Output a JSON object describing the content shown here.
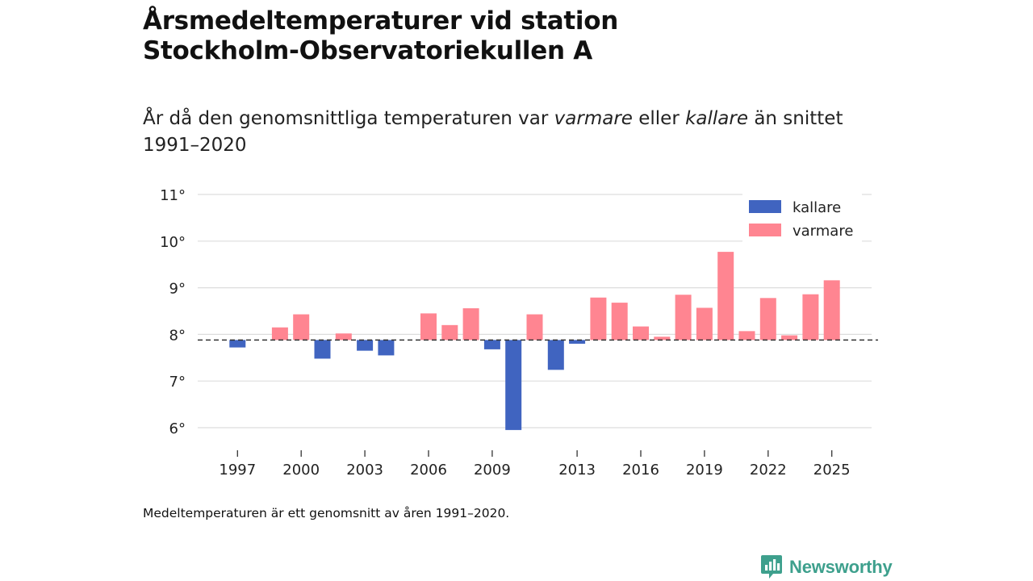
{
  "title_line1": "Årsmedeltemperaturer vid station",
  "title_line2": "Stockholm-Observatoriekullen A",
  "subtitle": {
    "part1": "År då den genomsnittliga temperaturen var ",
    "warm_word": "varmare",
    "part2": " eller ",
    "cold_word": "kallare",
    "part3": " än snittet 1991–2020"
  },
  "note": "Medeltemperaturen är ett genomsnitt av åren 1991–2020.",
  "brand": "Newsworthy",
  "colors": {
    "warm": "#ff8591",
    "cold": "#4064c0",
    "grid": "#dddddd",
    "brand": "#3ea08d"
  },
  "chart_data": {
    "type": "bar",
    "baseline": 7.88,
    "ylim": [
      5.6,
      11.2
    ],
    "yticks": [
      6,
      7,
      8,
      9,
      10,
      11
    ],
    "ytick_labels": [
      "6°",
      "7°",
      "8°",
      "9°",
      "10°",
      "11°"
    ],
    "xticks": [
      1997,
      2000,
      2003,
      2006,
      2009,
      2013,
      2016,
      2019,
      2022,
      2025
    ],
    "xtick_labels": [
      "1997",
      "2000",
      "2003",
      "2006",
      "2009",
      "2013",
      "2016",
      "2019",
      "2022",
      "2025"
    ],
    "legend": [
      {
        "label": "kallare",
        "key": "cold"
      },
      {
        "label": "varmare",
        "key": "warm"
      }
    ],
    "legend_position": "top-right",
    "years": [
      1996,
      1997,
      1998,
      1999,
      2000,
      2001,
      2002,
      2003,
      2004,
      2005,
      2006,
      2007,
      2008,
      2009,
      2010,
      2011,
      2012,
      2013,
      2014,
      2015,
      2016,
      2017,
      2018,
      2019,
      2020,
      2021,
      2022,
      2023,
      2024,
      2025
    ],
    "values": [
      7.88,
      7.72,
      7.88,
      8.15,
      8.43,
      7.48,
      8.02,
      7.65,
      7.55,
      7.88,
      8.45,
      8.2,
      8.56,
      7.68,
      5.95,
      8.43,
      7.24,
      7.8,
      8.79,
      8.68,
      8.17,
      7.95,
      8.85,
      8.57,
      9.77,
      8.07,
      8.78,
      7.98,
      8.86,
      9.16
    ]
  }
}
